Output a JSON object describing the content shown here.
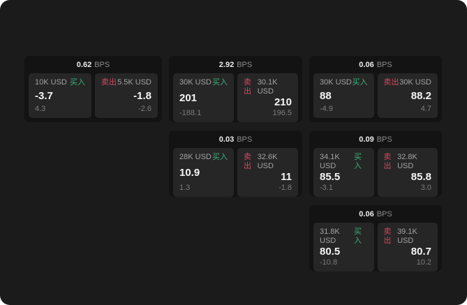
{
  "page": {
    "background": "#1b1b1c",
    "outer_background": "#ffffff"
  },
  "labels": {
    "buy": "买入",
    "sell": "卖出",
    "bps": "BPS"
  },
  "colors": {
    "buy": "#3fae76",
    "sell": "#d0495e",
    "card_bg": "#131314",
    "panel_bg": "#262627"
  },
  "cards": [
    {
      "row": 1,
      "col": 1,
      "bps": "0.62",
      "buy": {
        "size": "10K USD",
        "price": "-3.7",
        "delta": "4.3"
      },
      "sell": {
        "size": "5.5K USD",
        "price": "-1.8",
        "delta": "-2.6"
      }
    },
    {
      "row": 1,
      "col": 2,
      "bps": "2.92",
      "buy": {
        "size": "30K USD",
        "price": "201",
        "delta": "-188.1"
      },
      "sell": {
        "size": "30.1K USD",
        "price": "210",
        "delta": "196.5"
      }
    },
    {
      "row": 1,
      "col": 3,
      "bps": "0.06",
      "buy": {
        "size": "30K USD",
        "price": "88",
        "delta": "-4.9"
      },
      "sell": {
        "size": "30K USD",
        "price": "88.2",
        "delta": "4.7"
      }
    },
    {
      "row": 2,
      "col": 2,
      "bps": "0.03",
      "buy": {
        "size": "28K USD",
        "price": "10.9",
        "delta": "1.3"
      },
      "sell": {
        "size": "32.6K USD",
        "price": "11",
        "delta": "-1.8"
      }
    },
    {
      "row": 2,
      "col": 3,
      "bps": "0.09",
      "buy": {
        "size": "34.1K USD",
        "price": "85.5",
        "delta": "-3.1"
      },
      "sell": {
        "size": "32.8K USD",
        "price": "85.8",
        "delta": "3.0"
      }
    },
    {
      "row": 3,
      "col": 3,
      "bps": "0.06",
      "buy": {
        "size": "31.8K USD",
        "price": "80.5",
        "delta": "-10.8"
      },
      "sell": {
        "size": "39.1K USD",
        "price": "80.7",
        "delta": "10.2"
      }
    }
  ]
}
